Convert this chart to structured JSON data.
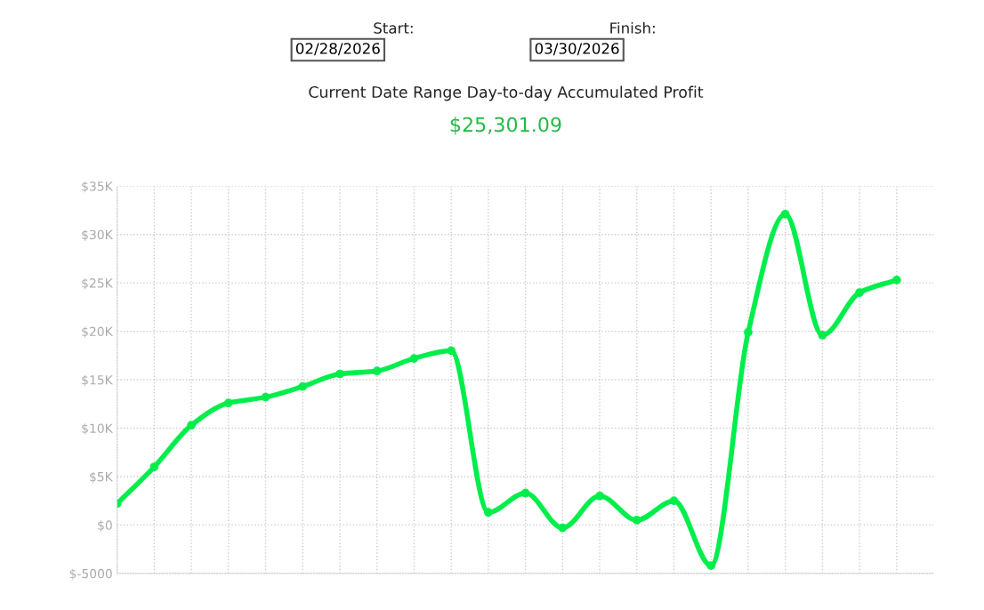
{
  "chart_data": {
    "type": "line",
    "title": "Current Date Range Day-to-day Accumulated Profit",
    "subtitle": "$25,301.09",
    "annotations": [
      "Start:",
      "02/28/2026",
      "Finish:",
      "03/30/2026"
    ],
    "categories": [
      null,
      null,
      null,
      null,
      null,
      null,
      null,
      null,
      null,
      null,
      null,
      null,
      null,
      null,
      null,
      null,
      null,
      null,
      null,
      null,
      null,
      null
    ],
    "series": [
      {
        "color": "#00ee4c",
        "values": [
          2200,
          6000,
          10300,
          12600,
          13200,
          14300,
          15600,
          15900,
          17200,
          18000,
          1300,
          3300,
          -300,
          3000,
          500,
          2500,
          -4200,
          19900,
          32100,
          19600,
          24000,
          25300
        ]
      }
    ],
    "ylim": [
      -5000,
      35000
    ],
    "yticks": [
      {
        "value": -5000,
        "label": "$-5000"
      },
      {
        "value": 0,
        "label": "$0"
      },
      {
        "value": 5000,
        "label": "$5K"
      },
      {
        "value": 10000,
        "label": "$10K"
      },
      {
        "value": 15000,
        "label": "$15K"
      },
      {
        "value": 20000,
        "label": "$20K"
      },
      {
        "value": 25000,
        "label": "$25K"
      },
      {
        "value": 30000,
        "label": "$30K"
      },
      {
        "value": 35000,
        "label": "$35K"
      }
    ],
    "grid": true,
    "legend": false,
    "marker": "circle",
    "line_style": "solid",
    "tick_labels": "y"
  }
}
